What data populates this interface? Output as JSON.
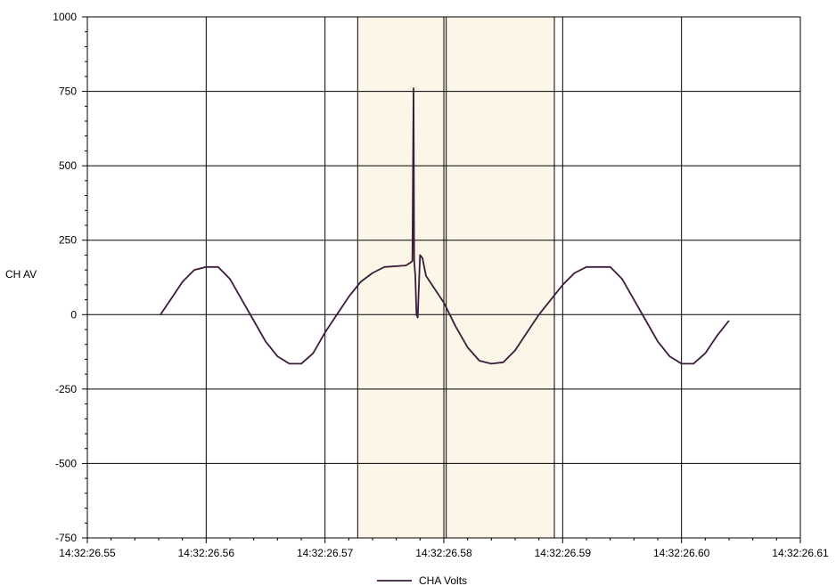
{
  "chart_data": {
    "type": "line",
    "title": "",
    "xlabel": "",
    "ylabel": "CH AV",
    "ylim": [
      -750,
      1000
    ],
    "yticks": [
      1000,
      750,
      500,
      250,
      0,
      -250,
      -500,
      -750
    ],
    "xlim": [
      0,
      0.06
    ],
    "x_ticks": [
      {
        "x": 0.0,
        "label": "14:32:26.55"
      },
      {
        "x": 0.01,
        "label": "14:32:26.56"
      },
      {
        "x": 0.02,
        "label": "14:32:26.57"
      },
      {
        "x": 0.03,
        "label": "14:32:26.58"
      },
      {
        "x": 0.04,
        "label": "14:32:26.59"
      },
      {
        "x": 0.05,
        "label": "14:32:26.60"
      },
      {
        "x": 0.06,
        "label": "14:32:26.61"
      }
    ],
    "grid": true,
    "legend": "bottom",
    "highlight_region": {
      "x": [
        0.02275,
        0.0393
      ],
      "color": "#FCF6E8"
    },
    "extra_vlines": [
      0.02275,
      0.0302,
      0.0393
    ],
    "series": [
      {
        "name": "CHA Volts",
        "color": "#3B1D3A",
        "points": [
          [
            0.00615,
            0
          ],
          [
            0.007,
            50
          ],
          [
            0.008,
            110
          ],
          [
            0.009,
            150
          ],
          [
            0.01,
            160
          ],
          [
            0.011,
            160
          ],
          [
            0.012,
            120
          ],
          [
            0.013,
            50
          ],
          [
            0.014,
            -20
          ],
          [
            0.015,
            -90
          ],
          [
            0.016,
            -140
          ],
          [
            0.017,
            -165
          ],
          [
            0.018,
            -165
          ],
          [
            0.019,
            -130
          ],
          [
            0.02,
            -60
          ],
          [
            0.021,
            0
          ],
          [
            0.022,
            60
          ],
          [
            0.023,
            110
          ],
          [
            0.024,
            140
          ],
          [
            0.025,
            160
          ],
          [
            0.0268,
            165
          ],
          [
            0.0272,
            175
          ],
          [
            0.02735,
            180
          ],
          [
            0.02745,
            760
          ],
          [
            0.0275,
            180
          ],
          [
            0.0276,
            130
          ],
          [
            0.0277,
            0
          ],
          [
            0.0278,
            -10
          ],
          [
            0.028,
            200
          ],
          [
            0.0282,
            190
          ],
          [
            0.0285,
            130
          ],
          [
            0.029,
            100
          ],
          [
            0.03,
            40
          ],
          [
            0.031,
            -40
          ],
          [
            0.032,
            -110
          ],
          [
            0.033,
            -155
          ],
          [
            0.034,
            -165
          ],
          [
            0.035,
            -160
          ],
          [
            0.036,
            -120
          ],
          [
            0.037,
            -60
          ],
          [
            0.038,
            0
          ],
          [
            0.039,
            50
          ],
          [
            0.04,
            100
          ],
          [
            0.041,
            140
          ],
          [
            0.042,
            160
          ],
          [
            0.044,
            160
          ],
          [
            0.045,
            120
          ],
          [
            0.046,
            50
          ],
          [
            0.047,
            -20
          ],
          [
            0.048,
            -90
          ],
          [
            0.049,
            -140
          ],
          [
            0.05,
            -165
          ],
          [
            0.051,
            -165
          ],
          [
            0.052,
            -130
          ],
          [
            0.053,
            -70
          ],
          [
            0.054,
            -20
          ]
        ]
      }
    ]
  }
}
